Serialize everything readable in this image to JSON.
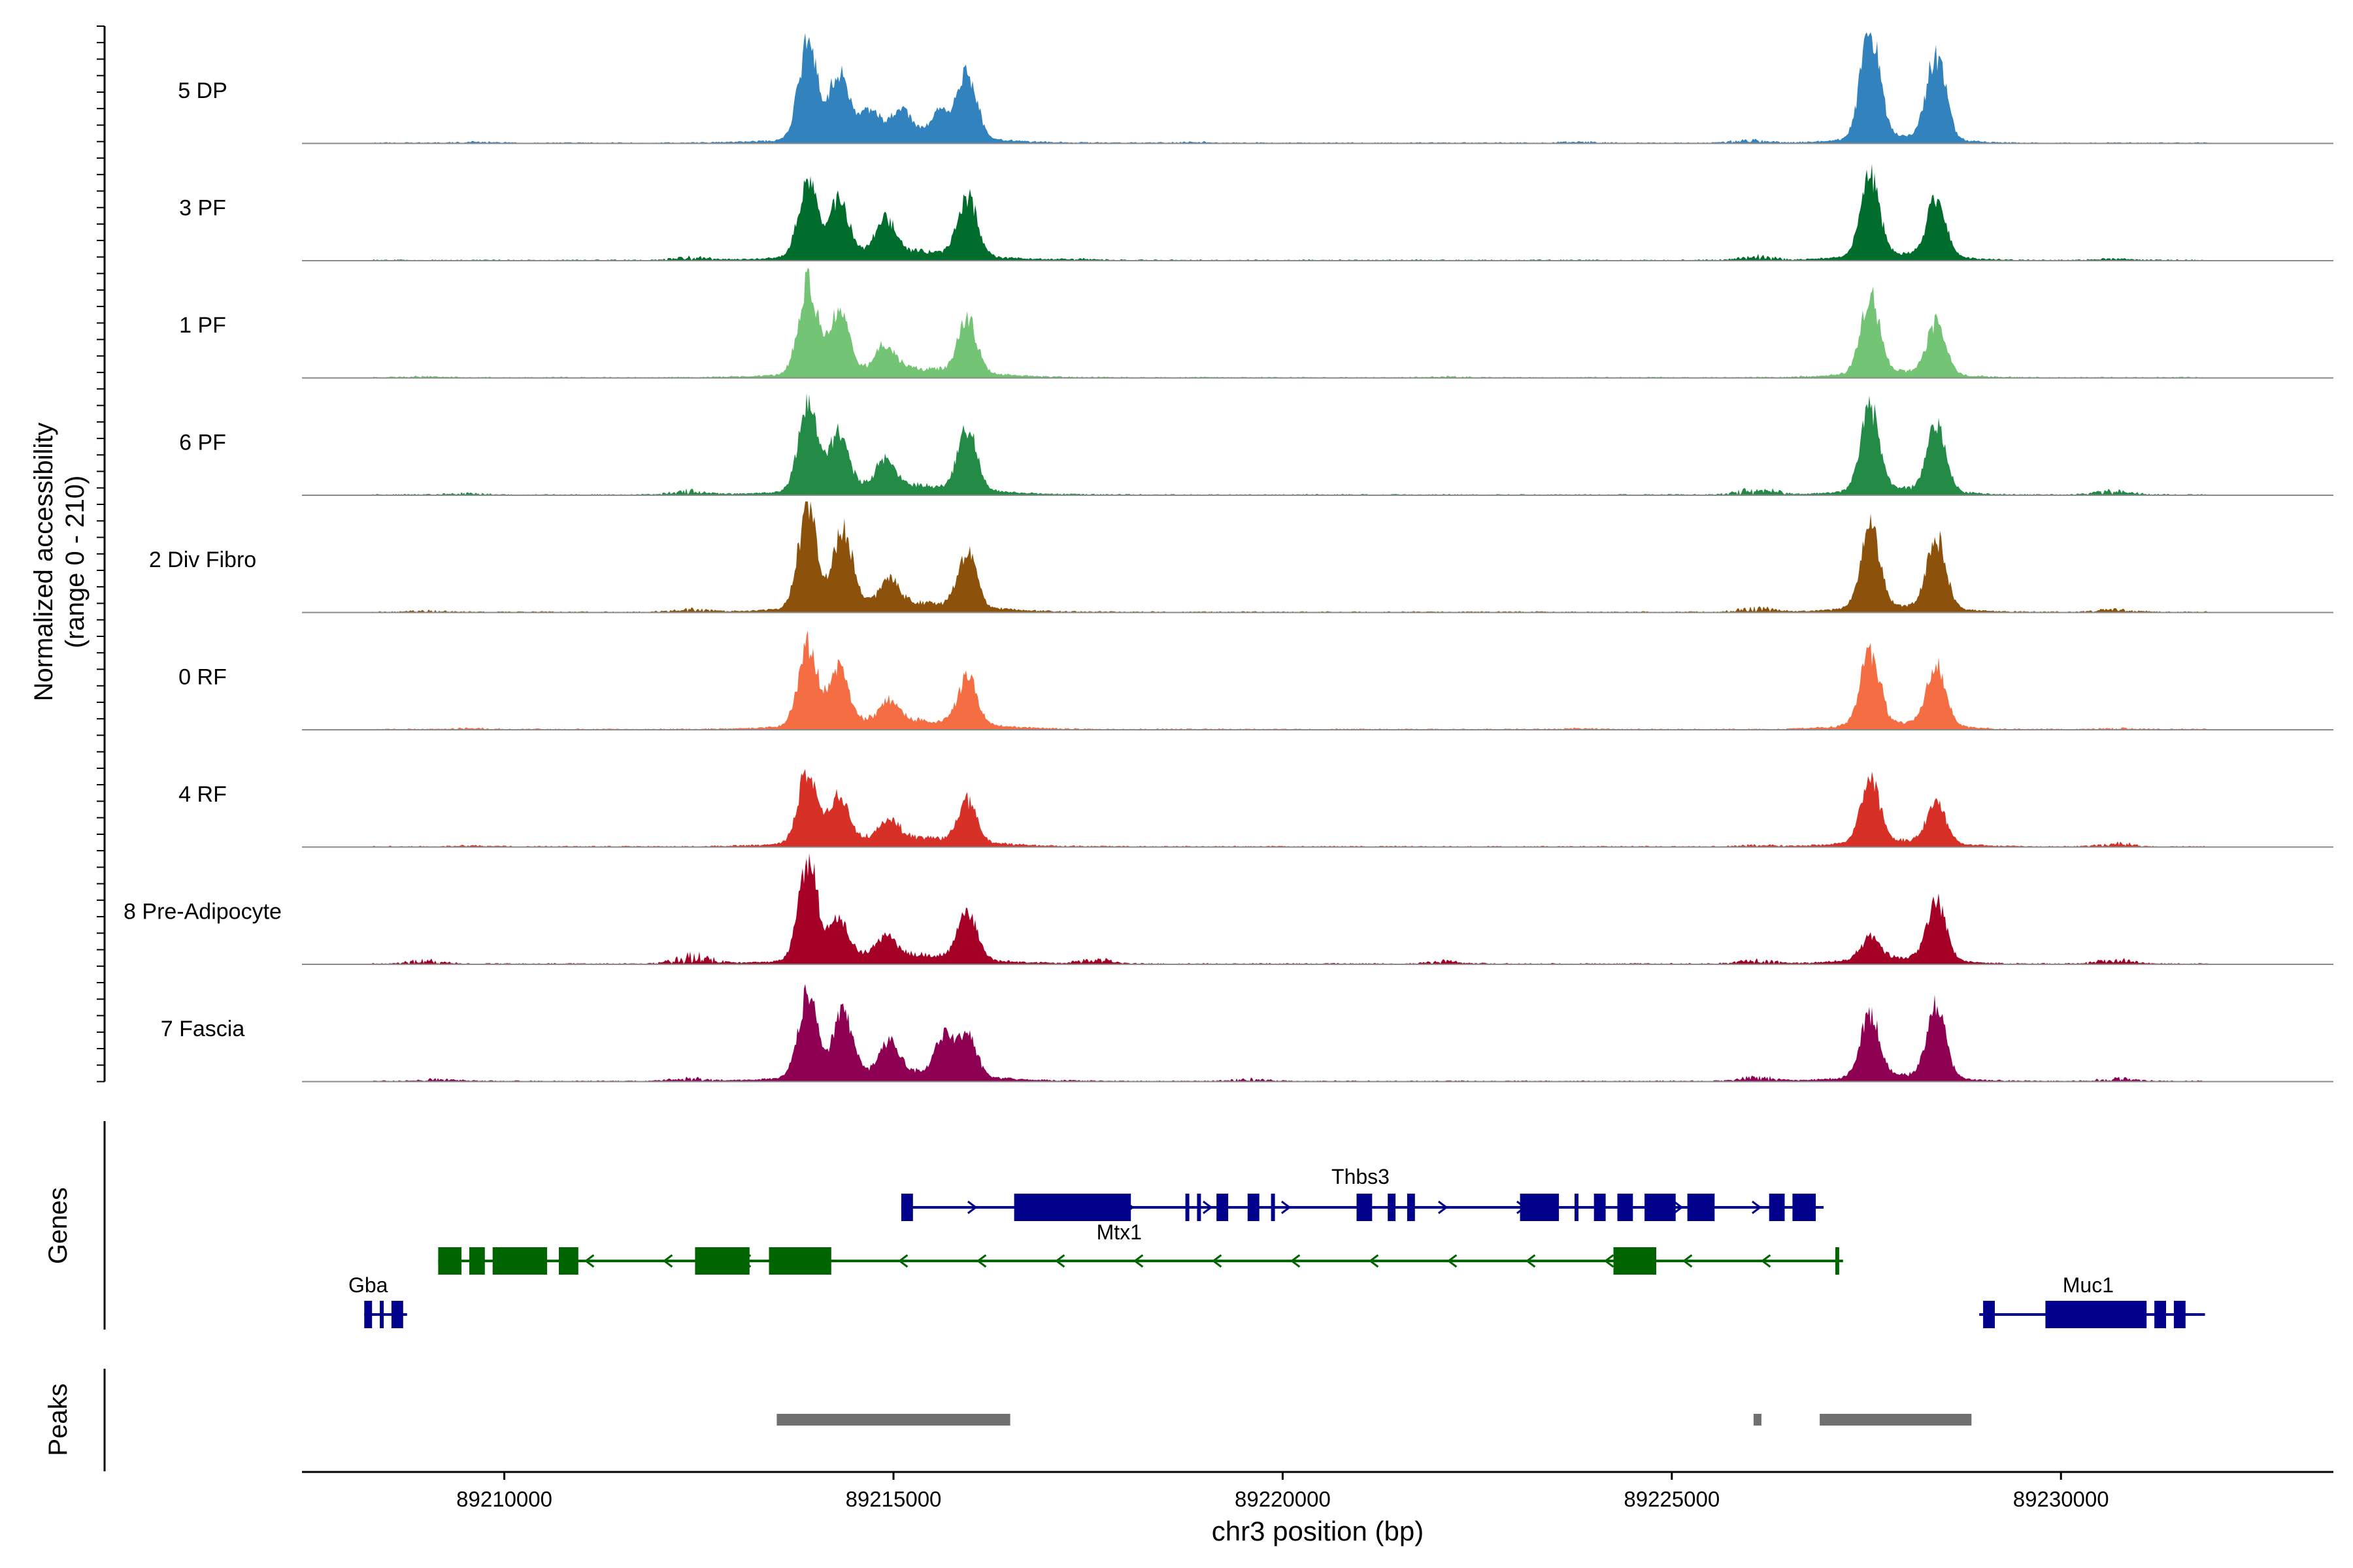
{
  "chart_data": {
    "type": "area",
    "title": "",
    "chromosome": "chr3",
    "xlabel": "chr3 position (bp)",
    "ylabel": "Normalized accessibility",
    "ylabel_range": "(range 0 - 210)",
    "y_range": [
      0,
      210
    ],
    "xlim": [
      89207400,
      89233500
    ],
    "x_ticks": [
      89210000,
      89215000,
      89220000,
      89225000,
      89230000
    ],
    "x_tick_labels": [
      "89210000",
      "89215000",
      "89220000",
      "89225000",
      "89230000"
    ],
    "series": [
      {
        "name": "5 DP",
        "color": "#3182bd",
        "peaks": [
          [
            89213900,
            180
          ],
          [
            89214300,
            120
          ],
          [
            89214700,
            50
          ],
          [
            89215100,
            48
          ],
          [
            89215600,
            45
          ],
          [
            89215950,
            125
          ],
          [
            89227550,
            210
          ],
          [
            89228400,
            160
          ]
        ],
        "background": [
          [
            89209600,
            3
          ],
          [
            89218800,
            3
          ],
          [
            89223800,
            4
          ],
          [
            89226000,
            8
          ]
        ]
      },
      {
        "name": "3 PF",
        "color": "#006d2c",
        "peaks": [
          [
            89213900,
            140
          ],
          [
            89214300,
            100
          ],
          [
            89214900,
            60
          ],
          [
            89215950,
            110
          ],
          [
            89227550,
            150
          ],
          [
            89228400,
            110
          ]
        ],
        "background": [
          [
            89212400,
            8
          ],
          [
            89217400,
            3
          ],
          [
            89226100,
            12
          ],
          [
            89230700,
            5
          ]
        ]
      },
      {
        "name": "1 PF",
        "color": "#74c476",
        "peaks": [
          [
            89213900,
            170
          ],
          [
            89214300,
            110
          ],
          [
            89214900,
            45
          ],
          [
            89215950,
            100
          ],
          [
            89227550,
            145
          ],
          [
            89228400,
            95
          ]
        ],
        "background": [
          [
            89209000,
            3
          ],
          [
            89222100,
            3
          ]
        ]
      },
      {
        "name": "6 PF",
        "color": "#238b45",
        "peaks": [
          [
            89213900,
            165
          ],
          [
            89214300,
            105
          ],
          [
            89214900,
            50
          ],
          [
            89215950,
            115
          ],
          [
            89227550,
            155
          ],
          [
            89228400,
            120
          ]
        ],
        "background": [
          [
            89209500,
            4
          ],
          [
            89212400,
            12
          ],
          [
            89226100,
            18
          ],
          [
            89230700,
            12
          ]
        ]
      },
      {
        "name": "2 Div Fibro",
        "color": "#8c510a",
        "peaks": [
          [
            89213900,
            190
          ],
          [
            89214350,
            140
          ],
          [
            89214950,
            45
          ],
          [
            89215950,
            100
          ],
          [
            89227550,
            150
          ],
          [
            89228400,
            130
          ]
        ],
        "background": [
          [
            89209000,
            4
          ],
          [
            89212400,
            8
          ],
          [
            89226100,
            12
          ],
          [
            89230700,
            8
          ]
        ]
      },
      {
        "name": "0 RF",
        "color": "#f46d43",
        "peaks": [
          [
            89213900,
            150
          ],
          [
            89214300,
            100
          ],
          [
            89214950,
            40
          ],
          [
            89215950,
            90
          ],
          [
            89227550,
            140
          ],
          [
            89228400,
            115
          ]
        ],
        "background": [
          [
            89209600,
            3
          ],
          [
            89223800,
            3
          ],
          [
            89230700,
            3
          ]
        ]
      },
      {
        "name": "4 RF",
        "color": "#d73027",
        "peaks": [
          [
            89213900,
            140
          ],
          [
            89214300,
            85
          ],
          [
            89214950,
            35
          ],
          [
            89215950,
            75
          ],
          [
            89227550,
            115
          ],
          [
            89228400,
            75
          ]
        ],
        "background": [
          [
            89209600,
            3
          ],
          [
            89226100,
            5
          ],
          [
            89230700,
            10
          ]
        ]
      },
      {
        "name": "8 Pre-Adipocyte",
        "color": "#a50026",
        "peaks": [
          [
            89213900,
            190
          ],
          [
            89214300,
            70
          ],
          [
            89214900,
            35
          ],
          [
            89215950,
            90
          ],
          [
            89227550,
            40
          ],
          [
            89228400,
            110
          ]
        ],
        "background": [
          [
            89209000,
            10
          ],
          [
            89212450,
            25
          ],
          [
            89217600,
            12
          ],
          [
            89222100,
            8
          ],
          [
            89226100,
            10
          ],
          [
            89230700,
            12
          ]
        ]
      },
      {
        "name": "7 Fascia",
        "color": "#8e0152",
        "peaks": [
          [
            89213900,
            155
          ],
          [
            89214350,
            120
          ],
          [
            89214950,
            60
          ],
          [
            89215650,
            70
          ],
          [
            89215950,
            75
          ],
          [
            89227550,
            115
          ],
          [
            89228400,
            130
          ]
        ],
        "background": [
          [
            89209200,
            6
          ],
          [
            89212400,
            8
          ],
          [
            89219600,
            6
          ],
          [
            89226100,
            12
          ],
          [
            89230700,
            8
          ]
        ]
      }
    ],
    "genes_track_label": "Genes",
    "peaks_track_label": "Peaks",
    "genes": [
      {
        "name": "Thbs3",
        "strand": "+",
        "color": "#00008b",
        "start": 89215100,
        "end": 89226950,
        "exons": [
          [
            89215100,
            89215250
          ],
          [
            89216550,
            89218050
          ],
          [
            89218750,
            89218800
          ],
          [
            89218900,
            89218950
          ],
          [
            89219150,
            89219300
          ],
          [
            89219550,
            89219700
          ],
          [
            89219850,
            89219900
          ],
          [
            89220950,
            89221150
          ],
          [
            89221350,
            89221450
          ],
          [
            89221600,
            89221700
          ],
          [
            89223050,
            89223550
          ],
          [
            89223750,
            89223800
          ],
          [
            89224000,
            89224150
          ],
          [
            89224300,
            89224500
          ],
          [
            89224650,
            89225050
          ],
          [
            89225200,
            89225550
          ],
          [
            89226250,
            89226450
          ],
          [
            89226550,
            89226850
          ]
        ]
      },
      {
        "name": "Mtx1",
        "strand": "-",
        "color": "#006400",
        "start": 89209150,
        "end": 89227200,
        "exons": [
          [
            89209150,
            89209450
          ],
          [
            89209550,
            89209750
          ],
          [
            89209850,
            89210550
          ],
          [
            89210700,
            89210950
          ],
          [
            89212450,
            89213150
          ],
          [
            89213400,
            89214200
          ],
          [
            89224250,
            89224800
          ],
          [
            89227100,
            89227150
          ]
        ]
      },
      {
        "name": "Gba",
        "strand": "+",
        "color": "#00008b",
        "start": 89208200,
        "end": 89208750,
        "exons": [
          [
            89208200,
            89208300
          ],
          [
            89208400,
            89208450
          ],
          [
            89208550,
            89208700
          ]
        ]
      },
      {
        "name": "Muc1",
        "strand": "+",
        "color": "#00008b",
        "start": 89228950,
        "end": 89231850,
        "exons": [
          [
            89229000,
            89229150
          ],
          [
            89229800,
            89231100
          ],
          [
            89231200,
            89231350
          ],
          [
            89231450,
            89231600
          ]
        ]
      }
    ],
    "peaks": [
      {
        "start": 89213500,
        "end": 89216500
      },
      {
        "start": 89226050,
        "end": 89226150
      },
      {
        "start": 89226900,
        "end": 89228850
      }
    ]
  }
}
